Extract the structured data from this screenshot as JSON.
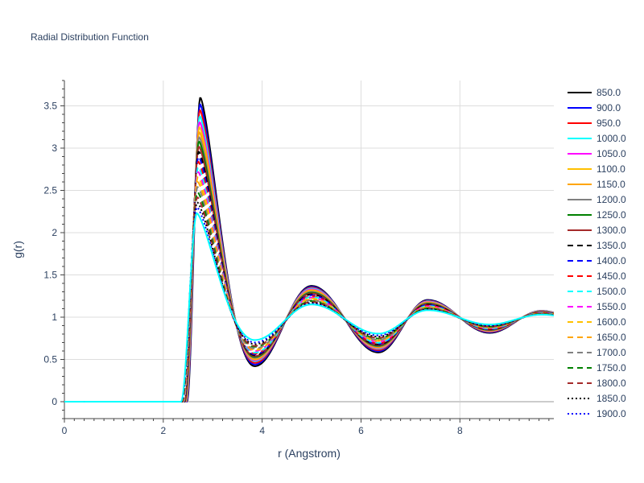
{
  "chart_data": {
    "type": "line",
    "title": "Radial Distribution Function",
    "xlabel": "r (Angstrom)",
    "ylabel": "g(r)",
    "xlim": [
      0,
      9.9
    ],
    "ylim": [
      -0.2,
      3.8
    ],
    "x_ticks": [
      0,
      2,
      4,
      6,
      8
    ],
    "x_tick_labels": [
      "0",
      "2",
      "4",
      "6",
      "8"
    ],
    "y_ticks": [
      0,
      0.5,
      1,
      1.5,
      2,
      2.5,
      3,
      3.5
    ],
    "y_tick_labels": [
      "0",
      "0.5",
      "1",
      "1.5",
      "2",
      "2.5",
      "3",
      "3.5"
    ],
    "grid": true,
    "legend_position": "right",
    "r_start": 0.4,
    "r_end": 9.9,
    "series": [
      {
        "name": "850.0",
        "color": "#000000",
        "dash": "solid",
        "peak1": 3.6,
        "min1": 0.42,
        "peak2": 1.37
      },
      {
        "name": "900.0",
        "color": "#0000ff",
        "dash": "solid",
        "peak1": 3.52,
        "min1": 0.44,
        "peak2": 1.36
      },
      {
        "name": "950.0",
        "color": "#ff0000",
        "dash": "solid",
        "peak1": 3.45,
        "min1": 0.46,
        "peak2": 1.35
      },
      {
        "name": "1000.0",
        "color": "#00ffff",
        "dash": "solid",
        "peak1": 3.38,
        "min1": 0.48,
        "peak2": 1.34
      },
      {
        "name": "1050.0",
        "color": "#ff00ff",
        "dash": "solid",
        "peak1": 3.31,
        "min1": 0.49,
        "peak2": 1.33
      },
      {
        "name": "1100.0",
        "color": "#ffc000",
        "dash": "solid",
        "peak1": 3.25,
        "min1": 0.5,
        "peak2": 1.32
      },
      {
        "name": "1150.0",
        "color": "#ffa500",
        "dash": "solid",
        "peak1": 3.19,
        "min1": 0.51,
        "peak2": 1.31
      },
      {
        "name": "1200.0",
        "color": "#808080",
        "dash": "solid",
        "peak1": 3.13,
        "min1": 0.52,
        "peak2": 1.3
      },
      {
        "name": "1250.0",
        "color": "#008000",
        "dash": "solid",
        "peak1": 3.08,
        "min1": 0.53,
        "peak2": 1.29
      },
      {
        "name": "1300.0",
        "color": "#a52a2a",
        "dash": "solid",
        "peak1": 3.02,
        "min1": 0.54,
        "peak2": 1.28
      },
      {
        "name": "1350.0",
        "color": "#000000",
        "dash": "dash",
        "peak1": 2.96,
        "min1": 0.55,
        "peak2": 1.27
      },
      {
        "name": "1400.0",
        "color": "#0000ff",
        "dash": "dash",
        "peak1": 2.9,
        "min1": 0.56,
        "peak2": 1.26
      },
      {
        "name": "1450.0",
        "color": "#ff0000",
        "dash": "dash",
        "peak1": 2.84,
        "min1": 0.57,
        "peak2": 1.25
      },
      {
        "name": "1500.0",
        "color": "#00ffff",
        "dash": "dash",
        "peak1": 2.78,
        "min1": 0.58,
        "peak2": 1.24
      },
      {
        "name": "1550.0",
        "color": "#ff00ff",
        "dash": "dash",
        "peak1": 2.72,
        "min1": 0.6,
        "peak2": 1.23
      },
      {
        "name": "1600.0",
        "color": "#ffc000",
        "dash": "dash",
        "peak1": 2.66,
        "min1": 0.61,
        "peak2": 1.22
      },
      {
        "name": "1650.0",
        "color": "#ffa500",
        "dash": "dash",
        "peak1": 2.6,
        "min1": 0.62,
        "peak2": 1.21
      },
      {
        "name": "1700.0",
        "color": "#808080",
        "dash": "dash",
        "peak1": 2.54,
        "min1": 0.63,
        "peak2": 1.2
      },
      {
        "name": "1750.0",
        "color": "#008000",
        "dash": "dash",
        "peak1": 2.48,
        "min1": 0.65,
        "peak2": 1.19
      },
      {
        "name": "1800.0",
        "color": "#a52a2a",
        "dash": "dash",
        "peak1": 2.42,
        "min1": 0.66,
        "peak2": 1.18
      },
      {
        "name": "1850.0",
        "color": "#000000",
        "dash": "dot",
        "peak1": 2.36,
        "min1": 0.68,
        "peak2": 1.17
      },
      {
        "name": "1900.0",
        "color": "#0000ff",
        "dash": "dot",
        "peak1": 2.3,
        "min1": 0.7,
        "peak2": 1.16
      },
      {
        "name": "",
        "color": "#00ffff",
        "dash": "solid",
        "peak1": 2.23,
        "min1": 0.73,
        "peak2": 1.15
      }
    ]
  }
}
